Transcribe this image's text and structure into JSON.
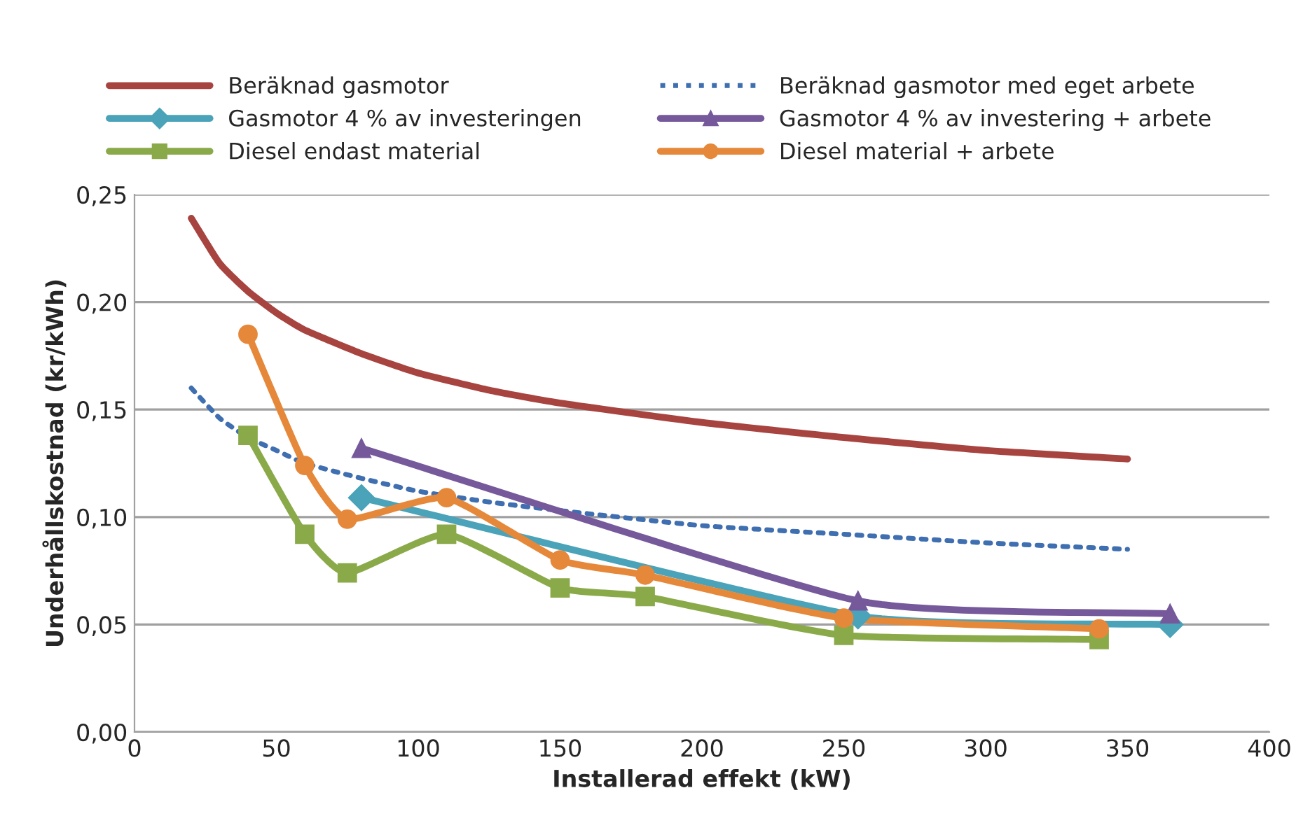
{
  "chart_data": {
    "type": "line",
    "xlabel": "Installerad effekt (kW)",
    "ylabel": "Underhållskostnad (kr/kWh)",
    "xlim": [
      0,
      400
    ],
    "xticks": [
      0,
      50,
      100,
      150,
      200,
      250,
      300,
      350,
      400
    ],
    "ylim": [
      0,
      0.25
    ],
    "yticks": [
      {
        "value": 0,
        "label": "0,00"
      },
      {
        "value": 0.05,
        "label": "0,05"
      },
      {
        "value": 0.1,
        "label": "0,10"
      },
      {
        "value": 0.15,
        "label": "0,15"
      },
      {
        "value": 0.2,
        "label": "0,20"
      },
      {
        "value": 0.25,
        "label": "0,25"
      }
    ],
    "grid": "y",
    "legend": "top",
    "series": [
      {
        "name": "Beräknad gasmotor",
        "color": "#a84440",
        "marker": "none",
        "line_style": "solid",
        "x": [
          20,
          30,
          40,
          50,
          60,
          80,
          100,
          125,
          150,
          200,
          250,
          300,
          350
        ],
        "values": [
          0.239,
          0.218,
          0.205,
          0.195,
          0.187,
          0.176,
          0.167,
          0.159,
          0.153,
          0.144,
          0.137,
          0.131,
          0.127
        ]
      },
      {
        "name": "Beräknad gasmotor med eget arbete",
        "color": "#3f6fb0",
        "marker": "none",
        "line_style": "dotted",
        "x": [
          20,
          30,
          40,
          50,
          60,
          80,
          100,
          125,
          150,
          200,
          250,
          300,
          350
        ],
        "values": [
          0.16,
          0.146,
          0.137,
          0.131,
          0.125,
          0.118,
          0.112,
          0.107,
          0.103,
          0.096,
          0.092,
          0.088,
          0.085
        ]
      },
      {
        "name": "Gasmotor 4 % av investeringen",
        "color": "#4aa3b8",
        "marker": "diamond",
        "line_style": "solid",
        "x": [
          80,
          255,
          365
        ],
        "values": [
          0.109,
          0.054,
          0.05
        ]
      },
      {
        "name": "Gasmotor 4 % av investering + arbete",
        "color": "#76599b",
        "marker": "triangle",
        "line_style": "solid",
        "x": [
          80,
          255,
          365
        ],
        "values": [
          0.132,
          0.061,
          0.055
        ]
      },
      {
        "name": "Diesel endast material",
        "color": "#8aaa4a",
        "marker": "square",
        "line_style": "solid",
        "x": [
          40,
          60,
          75,
          110,
          150,
          180,
          250,
          340
        ],
        "values": [
          0.138,
          0.092,
          0.074,
          0.092,
          0.067,
          0.063,
          0.045,
          0.043
        ]
      },
      {
        "name": "Diesel material + arbete",
        "color": "#e6883a",
        "marker": "circle",
        "line_style": "solid",
        "x": [
          40,
          60,
          75,
          110,
          150,
          180,
          250,
          340
        ],
        "values": [
          0.185,
          0.124,
          0.099,
          0.109,
          0.08,
          0.073,
          0.053,
          0.048
        ]
      }
    ]
  }
}
